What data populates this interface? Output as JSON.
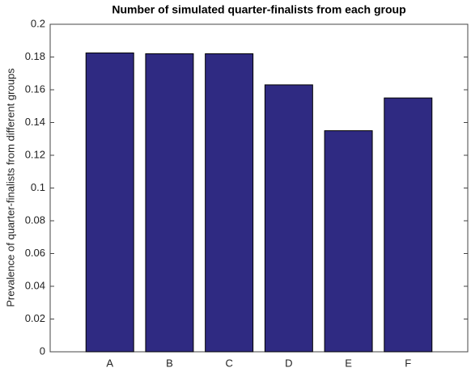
{
  "chart_data": {
    "type": "bar",
    "title": "Number of simulated quarter-finalists from each group",
    "y_label": "Prevalence of quarter-finalists from different groups",
    "categories": [
      "A",
      "B",
      "C",
      "D",
      "E",
      "F"
    ],
    "values": [
      0.1825,
      0.182,
      0.182,
      0.163,
      0.135,
      0.155
    ],
    "color": "#2f2a82",
    "ylim": [
      0,
      0.2
    ],
    "yticks": [
      0,
      0.02,
      0.04,
      0.06,
      0.08,
      0.1,
      0.12,
      0.14,
      0.16,
      0.18,
      0.2
    ],
    "grid": false
  }
}
